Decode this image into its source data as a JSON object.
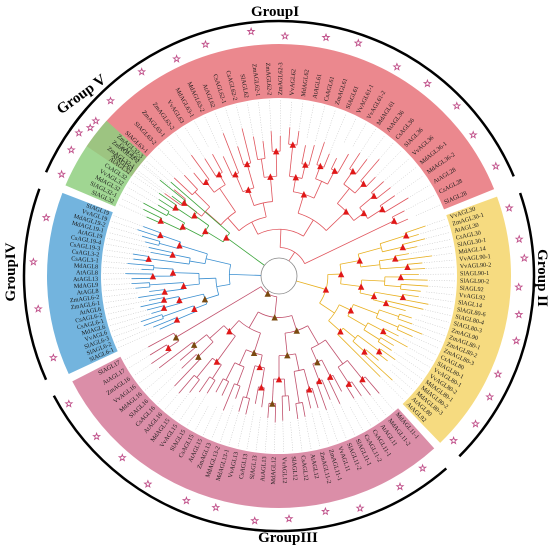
{
  "figure": {
    "groups": [
      {
        "id": "I",
        "label": "GroupI",
        "color": "#e8737a",
        "line": "#e0545c"
      },
      {
        "id": "II",
        "label": "Group II",
        "color": "#f5d56a",
        "line": "#e8b020"
      },
      {
        "id": "III",
        "label": "GroupIII",
        "color": "#d57a99",
        "line": "#c0506c"
      },
      {
        "id": "IV",
        "label": "GroupIV",
        "color": "#5aa7d8",
        "line": "#3b8fd0"
      },
      {
        "id": "V",
        "label": "Group V",
        "color": "#8fcf7f",
        "line": "#3aa43a"
      }
    ],
    "star_color": "#c0508a",
    "triangle_colors": {
      "red": "#e01818",
      "brown": "#7a4a10"
    },
    "leaves": {
      "I": [
        "AtAGL63",
        "CsAGL63",
        "SlAGL63-1",
        "SlAGL63-2",
        "ZmAGL63-1",
        "ZmAGL63-2",
        "VvAGL63",
        "MdAGL63-1",
        "MdAGL63-2",
        "AtAGL62",
        "CsAGL62-1",
        "CsAGL62-2",
        "SlAGL62",
        "ZmAGL62-1",
        "ZmAGL62-2",
        "ZmAGL62-3",
        "VvAGL62",
        "MdAGL62",
        "AtAGL61",
        "CsAGL61",
        "ZmAGL61",
        "SlAGL61",
        "VvAGL61-1",
        "VvAGL61-2",
        "MdAGL61",
        "AtAGL36",
        "CsAGL36",
        "SlAGL36",
        "VvAGL36",
        "MdAGL36-1",
        "MdAGL36-2",
        "AtAGL28",
        "CsAGL28",
        "SlAGL28"
      ],
      "II": [
        "VvAGL30",
        "ZmAGL30-1",
        "AtAGL30",
        "CsAGL30",
        "SlAGL30-1",
        "MdAGL14",
        "VvAGL90-1",
        "VvAGL90-2",
        "SlAGL90-1",
        "SlAGL90-2",
        "SlAGL92",
        "VvAGL92",
        "SlAGL14",
        "SlAGL80-6",
        "SlAGL80-4",
        "SlAGL80-3",
        "ZmAGL90",
        "ZmAGL80-1",
        "ZmAGL80-2",
        "ZmAGL80-3",
        "CsAGL80",
        "SlAGL80-1",
        "VvAGL80-1",
        "VvAGL80-2",
        "MdAGL80-1",
        "MdAGL80-2",
        "MdAGL80-3",
        "AtAGL80",
        "AtAGL92"
      ],
      "III": [
        "MdAGL11-1",
        "MdAGL11-2",
        "AtAGL11",
        "CsAGL11-1",
        "CsAGL11-2",
        "SlAGL11-1",
        "SlAGL11-2",
        "VvAGL11",
        "ZmAGL11-1",
        "ZmAGL11-2",
        "AtAGL12",
        "CsAGL12",
        "SlAGL12",
        "VvAGL12",
        "MdAGL12",
        "AtAGL13",
        "SlAGL13",
        "CsAGL13",
        "VvAGL13",
        "MdAGL13-1",
        "MdAGL13-2",
        "ZmAGL13",
        "AtAGL15",
        "CsAGL15",
        "SlAGL15",
        "VvAGL15",
        "MdAGL15",
        "AtAGL16",
        "CsAGL16",
        "SlAGL16",
        "MdAGL16",
        "VvAGL16",
        "ZmAGL16",
        "AtAGL17",
        "SlAGL17"
      ],
      "IV": [
        "SlAGL6-1",
        "SlAGL6-2",
        "SlAGL6-3",
        "VvAGL6",
        "MdAGL6",
        "CsAGL6-1",
        "CsAGL6-2",
        "AtAGL6",
        "ZmAGL6-1",
        "ZmAGL6-2",
        "AtAGL8",
        "MdAGL9",
        "AtAGL13",
        "AtAGL8",
        "MdAGL8",
        "CsAGL3-1",
        "CsAGL3-2",
        "CsAGL19-3",
        "CsAGL19-4",
        "AtAGL19",
        "MdAGL19-1",
        "MdAGL19-2",
        "VvAGL19",
        "SlAGL19"
      ],
      "V": [
        "SlAGL32",
        "SlAGL32-1",
        "MdAGL32",
        "VvAGL32",
        "CsAGL32",
        "AtAGL32",
        "ZmAGL32-1",
        "ZmAGL32-2",
        "ZmAGL32-3"
      ]
    }
  }
}
